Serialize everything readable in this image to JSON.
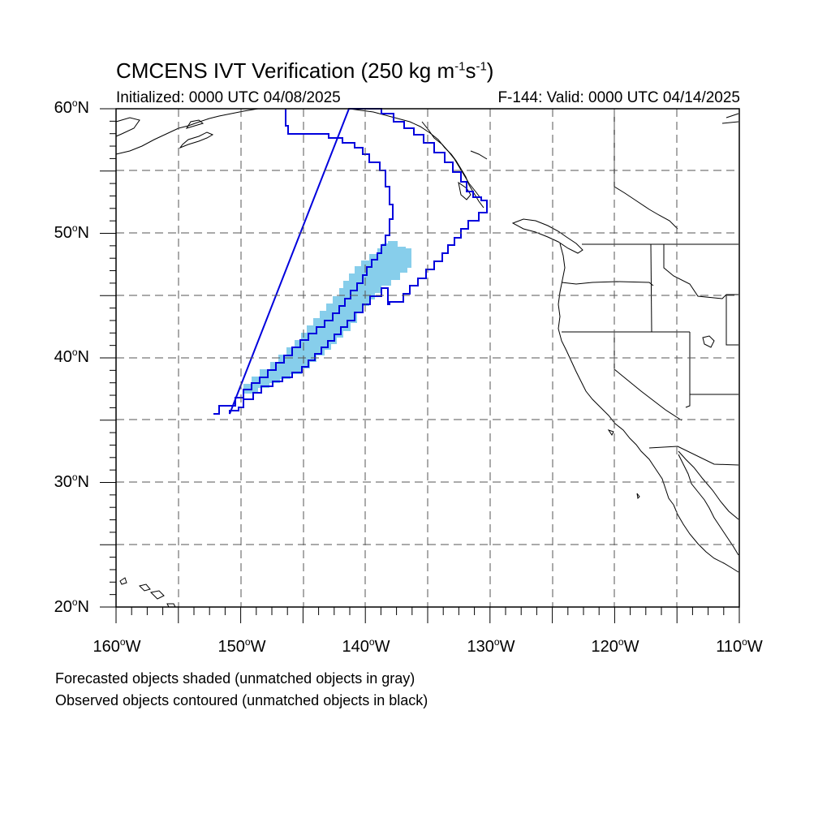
{
  "title": {
    "main": "CMCENS IVT Verification (250 kg m",
    "sup1": "-1",
    "mid": "s",
    "sup2": "-1",
    "end": ")"
  },
  "subtitle_left": "Initialized: 0000 UTC 04/08/2025",
  "subtitle_right": "F-144: Valid: 0000 UTC 04/14/2025",
  "lat_labels": [
    {
      "value": "60",
      "suffix": "N"
    },
    {
      "value": "50",
      "suffix": "N"
    },
    {
      "value": "40",
      "suffix": "N"
    },
    {
      "value": "30",
      "suffix": "N"
    },
    {
      "value": "20",
      "suffix": "N"
    }
  ],
  "lon_labels": [
    {
      "value": "160",
      "suffix": "W"
    },
    {
      "value": "150",
      "suffix": "W"
    },
    {
      "value": "140",
      "suffix": "W"
    },
    {
      "value": "130",
      "suffix": "W"
    },
    {
      "value": "120",
      "suffix": "W"
    },
    {
      "value": "110",
      "suffix": "W"
    }
  ],
  "legend": {
    "forecast": "Forecasted objects shaded (unmatched objects in gray)",
    "observed": "Observed objects contoured (unmatched objects in black)"
  },
  "colors": {
    "forecast_shade": "#87ceeb",
    "observed_contour": "#0000dd",
    "coastline": "#000000",
    "grid": "#555555"
  },
  "map": {
    "lon_range": [
      -160,
      -110
    ],
    "lat_range": [
      20,
      60
    ]
  }
}
